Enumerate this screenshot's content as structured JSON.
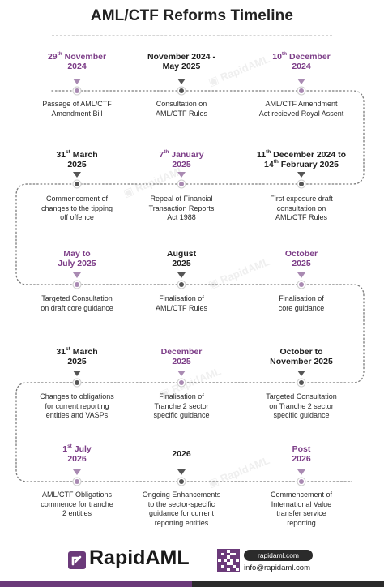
{
  "title": "AML/CTF Reforms Timeline",
  "colors": {
    "accent": "#7d3e88",
    "marker_highlight": "#a98ab2",
    "marker_dark": "#555555",
    "line": "#7a7a7a"
  },
  "watermark": "RapidAML",
  "rows": [
    {
      "items": [
        {
          "date": "29th November 2024",
          "date_parts": [
            {
              "t": "29"
            },
            {
              "t": "th",
              "sup": true
            },
            {
              "t": " November"
            },
            {
              "br": true
            },
            {
              "t": "2024"
            }
          ],
          "highlight": true,
          "desc": [
            "Passage of AML/CTF",
            "Amendment Bill"
          ]
        },
        {
          "date": "November 2024 - May 2025",
          "date_parts": [
            {
              "t": "November 2024 -"
            },
            {
              "br": true
            },
            {
              "t": "May 2025"
            }
          ],
          "highlight": false,
          "desc": [
            "Consultation on",
            "AML/CTF Rules"
          ]
        },
        {
          "date": "10th December 2024",
          "date_parts": [
            {
              "t": "10"
            },
            {
              "t": "th",
              "sup": true
            },
            {
              "t": " December"
            },
            {
              "br": true
            },
            {
              "t": "2024"
            }
          ],
          "highlight": true,
          "desc": [
            "AML/CTF Amendment",
            "Act recieved Royal Assent"
          ]
        }
      ]
    },
    {
      "items": [
        {
          "date": "31st March 2025",
          "date_parts": [
            {
              "t": "31"
            },
            {
              "t": "st",
              "sup": true
            },
            {
              "t": " March"
            },
            {
              "br": true
            },
            {
              "t": "2025"
            }
          ],
          "highlight": false,
          "desc": [
            "Commencement of",
            "changes to the tipping",
            "off offence"
          ]
        },
        {
          "date": "7th January 2025",
          "date_parts": [
            {
              "t": "7"
            },
            {
              "t": "th",
              "sup": true
            },
            {
              "t": " January"
            },
            {
              "br": true
            },
            {
              "t": "2025"
            }
          ],
          "highlight": true,
          "desc": [
            "Repeal of Financial",
            "Transaction Reports",
            "Act 1988"
          ]
        },
        {
          "date": "11th December 2024 to 14th February 2025",
          "date_parts": [
            {
              "t": "11"
            },
            {
              "t": "th",
              "sup": true
            },
            {
              "t": " December 2024 to"
            },
            {
              "br": true
            },
            {
              "t": "14"
            },
            {
              "t": "th",
              "sup": true
            },
            {
              "t": " February 2025"
            }
          ],
          "highlight": false,
          "desc": [
            "First exposure draft",
            "consultation on",
            "AML/CTF Rules"
          ]
        }
      ]
    },
    {
      "items": [
        {
          "date": "May to July 2025",
          "date_parts": [
            {
              "t": "May to"
            },
            {
              "br": true
            },
            {
              "t": "July 2025"
            }
          ],
          "highlight": true,
          "desc": [
            "Targeted Consultation",
            "on draft core guidance"
          ]
        },
        {
          "date": "August 2025",
          "date_parts": [
            {
              "t": "August"
            },
            {
              "br": true
            },
            {
              "t": "2025"
            }
          ],
          "highlight": false,
          "desc": [
            "Finalisation of",
            "AML/CTF Rules"
          ]
        },
        {
          "date": "October 2025",
          "date_parts": [
            {
              "t": "October"
            },
            {
              "br": true
            },
            {
              "t": "2025"
            }
          ],
          "highlight": true,
          "desc": [
            "Finalisation of",
            "core guidance"
          ]
        }
      ]
    },
    {
      "items": [
        {
          "date": "31st March 2025",
          "date_parts": [
            {
              "t": "31"
            },
            {
              "t": "st",
              "sup": true
            },
            {
              "t": " March"
            },
            {
              "br": true
            },
            {
              "t": "2025"
            }
          ],
          "highlight": false,
          "desc": [
            "Changes to obligations",
            "for current reporting",
            "entities and VASPs"
          ]
        },
        {
          "date": "December 2025",
          "date_parts": [
            {
              "t": "December"
            },
            {
              "br": true
            },
            {
              "t": "2025"
            }
          ],
          "highlight": true,
          "desc": [
            "Finalisation of",
            "Tranche 2 sector",
            "specific guidance"
          ]
        },
        {
          "date": "October to November 2025",
          "date_parts": [
            {
              "t": "October to"
            },
            {
              "br": true
            },
            {
              "t": "November 2025"
            }
          ],
          "highlight": false,
          "desc": [
            "Targeted Consultation",
            "on Tranche 2 sector",
            "specific guidance"
          ]
        }
      ]
    },
    {
      "items": [
        {
          "date": "1st July 2026",
          "date_parts": [
            {
              "t": "1"
            },
            {
              "t": "st",
              "sup": true
            },
            {
              "t": " July"
            },
            {
              "br": true
            },
            {
              "t": "2026"
            }
          ],
          "highlight": true,
          "desc": [
            "AML/CTF Obligations",
            "commence for tranche",
            "2 entities"
          ]
        },
        {
          "date": "2026",
          "date_parts": [
            {
              "t": "2026"
            }
          ],
          "highlight": false,
          "desc": [
            "Ongoing Enhancements",
            "to the sector-specific",
            "guidance for current",
            "reporting entities"
          ]
        },
        {
          "date": "Post 2026",
          "date_parts": [
            {
              "t": "Post"
            },
            {
              "br": true
            },
            {
              "t": "2026"
            }
          ],
          "highlight": true,
          "desc": [
            "Commencement of",
            "International Value",
            "transfer service",
            "reporting"
          ]
        }
      ]
    }
  ],
  "footer": {
    "brand": "RapidAML",
    "website": "rapidaml.com",
    "email": "info@rapidaml.com"
  }
}
